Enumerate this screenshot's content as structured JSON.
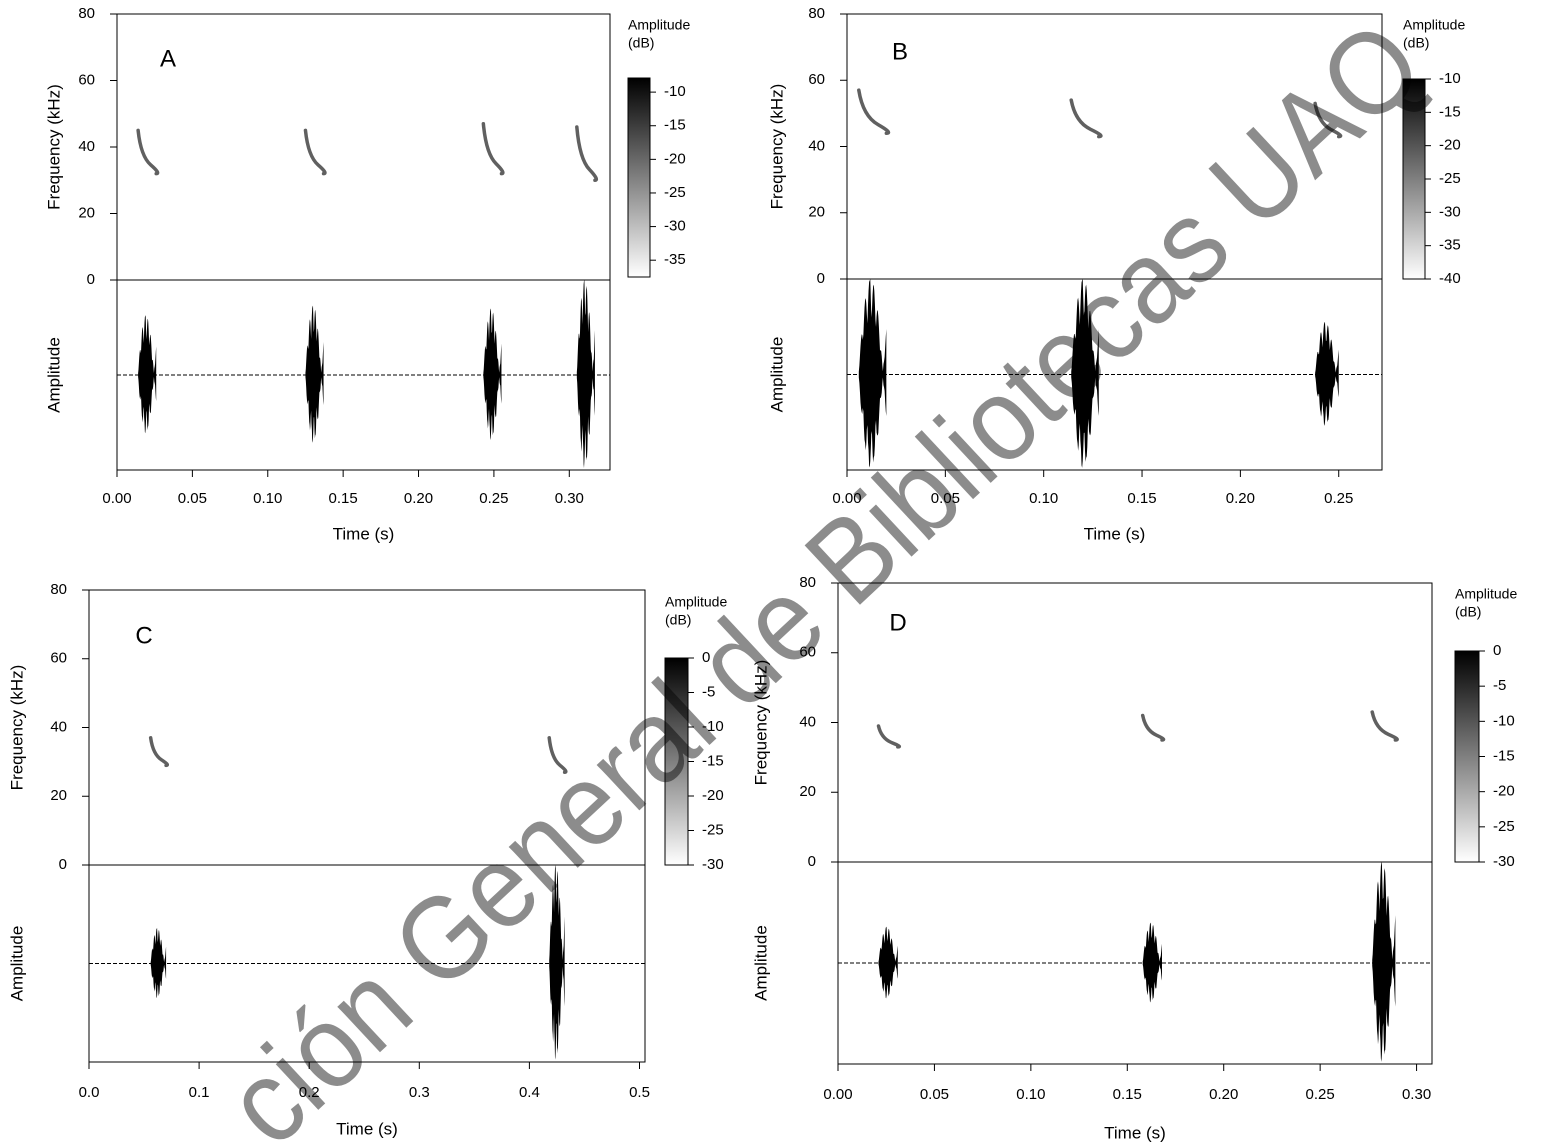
{
  "watermark": "ción General de Bibliotecas UAQ",
  "chart_data": [
    {
      "type": "spectrogram",
      "panel": "A",
      "xlabel": "Time (s)",
      "ylabel": "Frequency (kHz)",
      "y2label": "Amplitude",
      "colorbar_title": [
        "Amplitude",
        "(dB)"
      ],
      "color": "#000000",
      "xlim": [
        0,
        0.327
      ],
      "xticks": [
        {
          "value": 0,
          "label": "0.00"
        },
        0.05,
        {
          "value": 0.1,
          "label": "0.10"
        },
        0.15,
        {
          "value": 0.2,
          "label": "0.20"
        },
        0.25,
        {
          "value": 0.3,
          "label": "0.30"
        }
      ],
      "ylim": [
        0,
        80
      ],
      "yticks": [
        0,
        20,
        40,
        60,
        80
      ],
      "amplitude_lim": [
        -1,
        1
      ],
      "colorbar_lim": [
        -37.5,
        -7.9
      ],
      "colorbar_ticks": [
        -10,
        -15,
        -20,
        -25,
        -30,
        -35
      ],
      "calls": [
        {
          "start": 0.014,
          "end": 0.026,
          "freq_low": 32,
          "freq_high": 45,
          "amplitude": 0.63
        },
        {
          "start": 0.125,
          "end": 0.137,
          "freq_low": 32,
          "freq_high": 45,
          "amplitude": 0.73
        },
        {
          "start": 0.243,
          "end": 0.255,
          "freq_low": 32,
          "freq_high": 47,
          "amplitude": 0.7
        },
        {
          "start": 0.305,
          "end": 0.317,
          "freq_low": 30,
          "freq_high": 46,
          "amplitude": 1.0
        }
      ]
    },
    {
      "type": "spectrogram",
      "panel": "B",
      "xlabel": "Time (s)",
      "ylabel": "Frequency (kHz)",
      "y2label": "Amplitude",
      "colorbar_title": [
        "Amplitude",
        "(dB)"
      ],
      "color": "#000000",
      "xlim": [
        0,
        0.272
      ],
      "xticks": [
        {
          "value": 0,
          "label": "0.00"
        },
        0.05,
        {
          "value": 0.1,
          "label": "0.10"
        },
        0.15,
        {
          "value": 0.2,
          "label": "0.20"
        },
        0.25
      ],
      "ylim": [
        0,
        80
      ],
      "yticks": [
        0,
        20,
        40,
        60,
        80
      ],
      "amplitude_lim": [
        -1,
        1
      ],
      "colorbar_lim": [
        -40,
        -10
      ],
      "colorbar_ticks": [
        -10,
        -15,
        -20,
        -25,
        -30,
        -35,
        -40
      ],
      "calls": [
        {
          "start": 0.006,
          "end": 0.02,
          "freq_low": 44,
          "freq_high": 57,
          "amplitude": 1.0
        },
        {
          "start": 0.114,
          "end": 0.128,
          "freq_low": 43,
          "freq_high": 54,
          "amplitude": 1.0
        },
        {
          "start": 0.238,
          "end": 0.25,
          "freq_low": 43,
          "freq_high": 53,
          "amplitude": 0.55
        }
      ]
    },
    {
      "type": "spectrogram",
      "panel": "C",
      "xlabel": "Time (s)",
      "ylabel": "Frequency (kHz)",
      "y2label": "Amplitude",
      "colorbar_title": [
        "Amplitude",
        "(dB)"
      ],
      "color": "#000000",
      "xlim": [
        0,
        0.505
      ],
      "xticks": [
        {
          "value": 0,
          "label": "0.0"
        },
        0.1,
        0.2,
        0.3,
        0.4,
        0.5
      ],
      "ylim": [
        0,
        80
      ],
      "yticks": [
        0,
        20,
        40,
        60,
        80
      ],
      "amplitude_lim": [
        -1,
        1
      ],
      "colorbar_lim": [
        -30,
        0
      ],
      "colorbar_ticks": [
        0,
        -5,
        -10,
        -15,
        -20,
        -25,
        -30
      ],
      "calls": [
        {
          "start": 0.056,
          "end": 0.07,
          "freq_low": 29,
          "freq_high": 37,
          "amplitude": 0.36
        },
        {
          "start": 0.418,
          "end": 0.432,
          "freq_low": 27,
          "freq_high": 37,
          "amplitude": 1.0
        }
      ]
    },
    {
      "type": "spectrogram",
      "panel": "D",
      "xlabel": "Time (s)",
      "ylabel": "Frequency (kHz)",
      "y2label": "Amplitude",
      "colorbar_title": [
        "Amplitude",
        "(dB)"
      ],
      "color": "#000000",
      "xlim": [
        0,
        0.308
      ],
      "xticks": [
        {
          "value": 0,
          "label": "0.00"
        },
        0.05,
        {
          "value": 0.1,
          "label": "0.10"
        },
        0.15,
        {
          "value": 0.2,
          "label": "0.20"
        },
        0.25,
        {
          "value": 0.3,
          "label": "0.30"
        }
      ],
      "ylim": [
        0,
        80
      ],
      "yticks": [
        0,
        20,
        40,
        60,
        80
      ],
      "amplitude_lim": [
        -1,
        1
      ],
      "colorbar_lim": [
        -30,
        0
      ],
      "colorbar_ticks": [
        0,
        -5,
        -10,
        -15,
        -20,
        -25,
        -30
      ],
      "calls": [
        {
          "start": 0.021,
          "end": 0.031,
          "freq_low": 33,
          "freq_high": 39,
          "amplitude": 0.36
        },
        {
          "start": 0.158,
          "end": 0.168,
          "freq_low": 35,
          "freq_high": 42,
          "amplitude": 0.4
        },
        {
          "start": 0.277,
          "end": 0.289,
          "freq_low": 35,
          "freq_high": 43,
          "amplitude": 1.0
        }
      ]
    }
  ]
}
